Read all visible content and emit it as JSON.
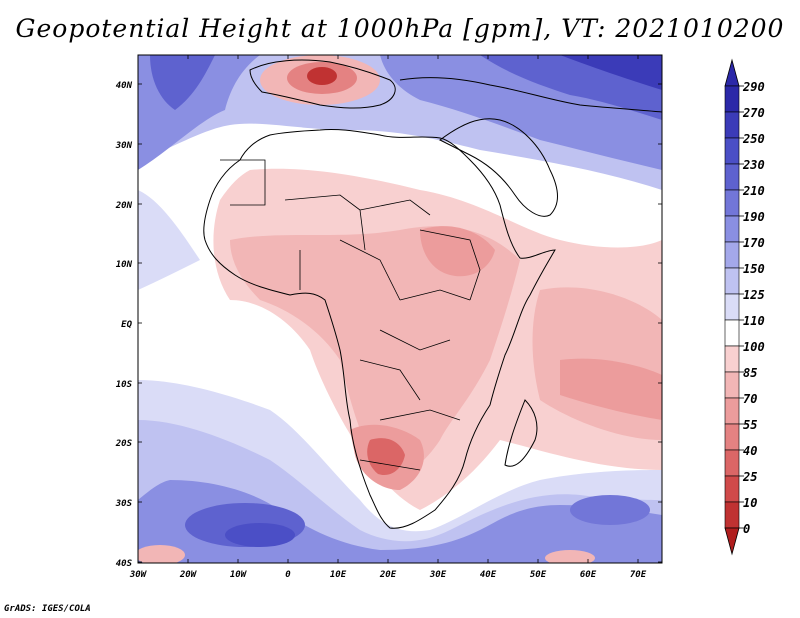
{
  "title": "Geopotential Height at 1000hPa [gpm], VT: 2021010200",
  "credit": "GrADS: IGES/COLA",
  "map": {
    "lat_labels": [
      "40N",
      "30N",
      "20N",
      "10N",
      "EQ",
      "10S",
      "20S",
      "30S",
      "40S"
    ],
    "lon_labels": [
      "30W",
      "20W",
      "10W",
      "0",
      "10E",
      "20E",
      "30E",
      "40E",
      "50E",
      "60E",
      "70E"
    ],
    "lon_range": [
      -30,
      75
    ],
    "lat_range": [
      -40,
      45
    ]
  },
  "colorbar": {
    "levels": [
      "290",
      "270",
      "250",
      "230",
      "210",
      "190",
      "170",
      "150",
      "125",
      "110",
      "100",
      "85",
      "70",
      "55",
      "40",
      "25",
      "10",
      "0"
    ],
    "colors": [
      "#2b28a8",
      "#3b3bb8",
      "#4b4fc6",
      "#5e62cf",
      "#7276d8",
      "#8a8fe2",
      "#a4a8ea",
      "#bfc2f1",
      "#dadcf7",
      "#ffffff",
      "#f8d0d0",
      "#f2b6b6",
      "#ec9c9c",
      "#e48282",
      "#db6666",
      "#d04a4a",
      "#c03232",
      "#b01e1e"
    ]
  }
}
